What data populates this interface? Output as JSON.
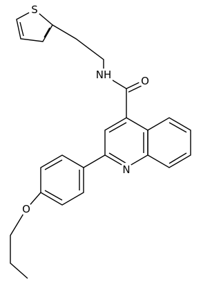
{
  "atoms": [
    {
      "label": "S"
    },
    {
      "label": "NH"
    },
    {
      "label": "O"
    },
    {
      "label": "N"
    },
    {
      "label": "O"
    }
  ]
}
